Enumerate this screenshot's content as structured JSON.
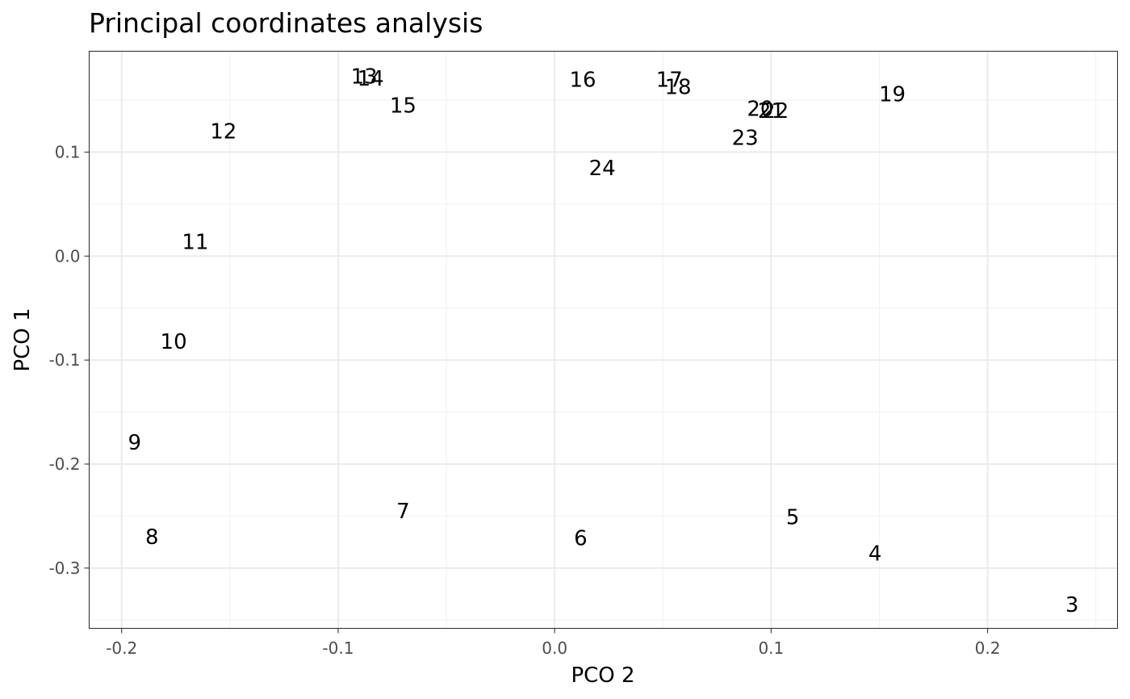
{
  "chart_data": {
    "type": "scatter",
    "title": "Principal coordinates analysis",
    "xlabel": "PCO 2",
    "ylabel": "PCO 1",
    "xlim": [
      -0.215,
      0.26
    ],
    "ylim": [
      -0.358,
      0.197
    ],
    "x_ticks": [
      -0.2,
      -0.1,
      0.0,
      0.1,
      0.2
    ],
    "x_tick_labels": [
      "-0.2",
      "-0.1",
      "0.0",
      "0.1",
      "0.2"
    ],
    "y_ticks": [
      0.1,
      0.0,
      -0.1,
      -0.2,
      -0.3
    ],
    "y_tick_labels": [
      "0.1",
      "0.0",
      "-0.1",
      "-0.2",
      "-0.3"
    ],
    "grid": true,
    "points": [
      {
        "label": "3",
        "x": 0.239,
        "y": -0.335
      },
      {
        "label": "4",
        "x": 0.148,
        "y": -0.286
      },
      {
        "label": "5",
        "x": 0.11,
        "y": -0.251
      },
      {
        "label": "6",
        "x": 0.012,
        "y": -0.271
      },
      {
        "label": "7",
        "x": -0.07,
        "y": -0.245
      },
      {
        "label": "8",
        "x": -0.186,
        "y": -0.27
      },
      {
        "label": "9",
        "x": -0.194,
        "y": -0.179
      },
      {
        "label": "10",
        "x": -0.176,
        "y": -0.082
      },
      {
        "label": "11",
        "x": -0.166,
        "y": 0.014
      },
      {
        "label": "12",
        "x": -0.153,
        "y": 0.12
      },
      {
        "label": "13",
        "x": -0.088,
        "y": 0.173
      },
      {
        "label": "14",
        "x": -0.085,
        "y": 0.171
      },
      {
        "label": "15",
        "x": -0.07,
        "y": 0.145
      },
      {
        "label": "16",
        "x": 0.013,
        "y": 0.17
      },
      {
        "label": "17",
        "x": 0.053,
        "y": 0.17
      },
      {
        "label": "18",
        "x": 0.057,
        "y": 0.163
      },
      {
        "label": "19",
        "x": 0.156,
        "y": 0.156
      },
      {
        "label": "20",
        "x": 0.095,
        "y": 0.142
      },
      {
        "label": "21",
        "x": 0.1,
        "y": 0.14
      },
      {
        "label": "22",
        "x": 0.102,
        "y": 0.14
      },
      {
        "label": "23",
        "x": 0.088,
        "y": 0.114
      },
      {
        "label": "24",
        "x": 0.022,
        "y": 0.085
      }
    ]
  }
}
